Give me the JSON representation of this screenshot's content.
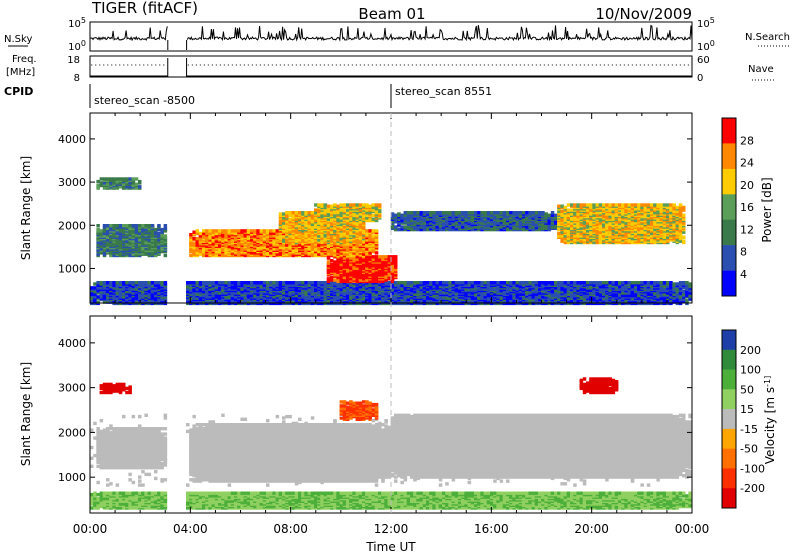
{
  "header": {
    "radar": "TIGER (fitACF)",
    "beam": "Beam 01",
    "date": "10/Nov/2009"
  },
  "nsky": {
    "label": "N.Sky",
    "ticks": [
      "10^5",
      "10^0"
    ],
    "right_label": "N.Search",
    "right_ticks": [
      "10^5",
      "10^0"
    ]
  },
  "freq": {
    "label_line1": "Freq.",
    "label_line2": "[MHz]",
    "ticks": [
      "18",
      "8"
    ],
    "right_label": "Nave",
    "right_ticks": [
      "60",
      "0"
    ]
  },
  "cpid": {
    "label": "CPID",
    "programs": [
      "stereo_scan -8500",
      "stereo_scan 8551"
    ]
  },
  "chart_data": [
    {
      "type": "heatmap",
      "name": "power",
      "ylabel": "Slant Range [km]",
      "yticks": [
        1000,
        2000,
        3000,
        4000
      ],
      "ylim": [
        200,
        4600
      ],
      "xlim_hours": [
        0,
        24
      ],
      "colorbar": {
        "label": "Power [dB]",
        "ticks": [
          "28",
          "24",
          "20",
          "16",
          "12",
          "8",
          "4"
        ],
        "range": [
          0,
          32
        ],
        "colors": [
          "#0000ff",
          "#2a4fb0",
          "#3a7a4a",
          "#5a9e5a",
          "#ffcc00",
          "#ff8800",
          "#ff0000"
        ]
      },
      "bands": [
        {
          "t": [
            0.2,
            3.0
          ],
          "r": [
            1300,
            2000
          ],
          "level": 11
        },
        {
          "t": [
            4.0,
            11.5
          ],
          "r": [
            1300,
            1900
          ],
          "level": 25
        },
        {
          "t": [
            7.5,
            11.0
          ],
          "r": [
            1600,
            2300
          ],
          "level": 22
        },
        {
          "t": [
            9.5,
            12.2
          ],
          "r": [
            700,
            1300
          ],
          "level": 30
        },
        {
          "t": [
            9.0,
            11.6
          ],
          "r": [
            2100,
            2500
          ],
          "level": 20
        },
        {
          "t": [
            0.3,
            2.0
          ],
          "r": [
            2850,
            3100
          ],
          "level": 12
        },
        {
          "t": [
            12.0,
            19.0
          ],
          "r": [
            1900,
            2300
          ],
          "level": 8
        },
        {
          "t": [
            18.7,
            23.8
          ],
          "r": [
            1600,
            2500
          ],
          "level": 21
        },
        {
          "t": [
            0.0,
            24.0
          ],
          "r": [
            200,
            700
          ],
          "level": 6
        }
      ]
    },
    {
      "type": "heatmap",
      "name": "velocity",
      "ylabel": "Slant Range [km]",
      "yticks": [
        1000,
        2000,
        3000,
        4000
      ],
      "ylim": [
        200,
        4600
      ],
      "xlim_hours": [
        0,
        24
      ],
      "xlabel": "Time UT",
      "xticks": [
        "00:00",
        "04:00",
        "08:00",
        "12:00",
        "16:00",
        "20:00",
        "00:00"
      ],
      "colorbar": {
        "label": "Velocity [m s^-1]",
        "ticks": [
          "200",
          "100",
          "50",
          "15",
          "-15",
          "-50",
          "-100",
          "-200"
        ],
        "colors": [
          "#1f3fa8",
          "#2f8a3a",
          "#4caf3a",
          "#90d060",
          "#bbbbbb",
          "#ffa500",
          "#ff7000",
          "#ff3000",
          "#e00000"
        ]
      },
      "bands": [
        {
          "t": [
            0.2,
            3.0
          ],
          "r": [
            1200,
            2100
          ],
          "level": 0
        },
        {
          "t": [
            4.0,
            12.0
          ],
          "r": [
            900,
            2200
          ],
          "level": 0
        },
        {
          "t": [
            12.0,
            24.0
          ],
          "r": [
            1000,
            2400
          ],
          "level": 0
        },
        {
          "t": [
            0.4,
            1.6
          ],
          "r": [
            2900,
            3100
          ],
          "level": -200
        },
        {
          "t": [
            10.0,
            11.5
          ],
          "r": [
            2300,
            2700
          ],
          "level": -80
        },
        {
          "t": [
            19.5,
            21.0
          ],
          "r": [
            2900,
            3200
          ],
          "level": -200
        },
        {
          "t": [
            0.0,
            24.0
          ],
          "r": [
            300,
            650
          ],
          "level": 30
        }
      ]
    }
  ]
}
